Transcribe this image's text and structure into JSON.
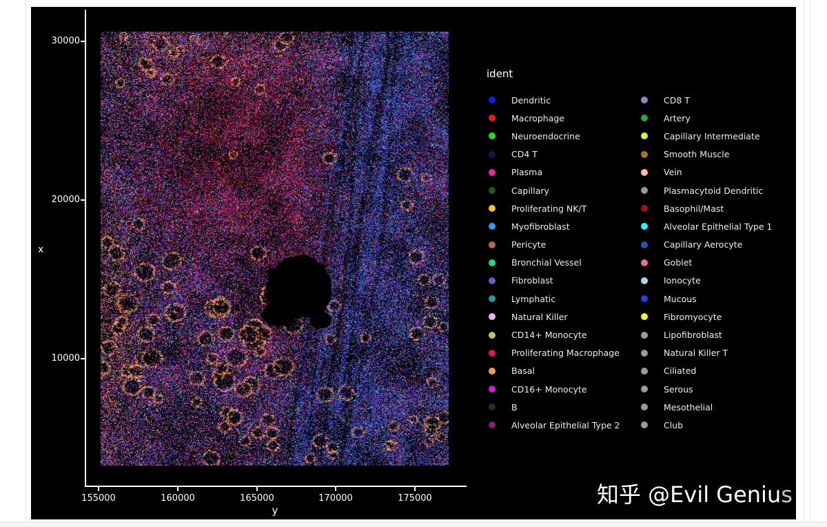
{
  "page": {
    "background": "#ffffff",
    "panel_bg": "#000000",
    "watermark": {
      "text": "知乎 @Evil Genius",
      "main": "知乎 @Evil Geniu",
      "tail": "s"
    }
  },
  "chart_data": {
    "type": "scatter",
    "title": "",
    "legend_title": "ident",
    "xlabel": "y",
    "ylabel": "x",
    "x_ticks": [
      "155000",
      "160000",
      "165000",
      "170000",
      "175000"
    ],
    "y_ticks": [
      "30000",
      "20000",
      "10000"
    ],
    "x_range": [
      154200,
      178200
    ],
    "y_range": [
      2000,
      32000
    ],
    "grid": false,
    "background": "#000000",
    "axis_color": "#ffffff",
    "legend_position": "right",
    "series": [
      {
        "name": "Dendritic",
        "color": "#1b1bf0"
      },
      {
        "name": "Macrophage",
        "color": "#ee1616"
      },
      {
        "name": "Neuroendocrine",
        "color": "#1edc1e"
      },
      {
        "name": "CD4 T",
        "color": "#12124e"
      },
      {
        "name": "Plasma",
        "color": "#ee22aa"
      },
      {
        "name": "Capillary",
        "color": "#1d5c1d"
      },
      {
        "name": "Proliferating NK/T",
        "color": "#f2c423"
      },
      {
        "name": "Myofibroblast",
        "color": "#309ce8"
      },
      {
        "name": "Pericyte",
        "color": "#b26a5c"
      },
      {
        "name": "Bronchial Vessel",
        "color": "#10dc8c"
      },
      {
        "name": "Fibroblast",
        "color": "#7a4fc4"
      },
      {
        "name": "Lymphatic",
        "color": "#2f9595"
      },
      {
        "name": "Natural Killer",
        "color": "#f2aaf2"
      },
      {
        "name": "CD14+ Monocyte",
        "color": "#bdc06e"
      },
      {
        "name": "Proliferating Macrophage",
        "color": "#e2174c"
      },
      {
        "name": "Basal",
        "color": "#f39a54"
      },
      {
        "name": "CD16+ Monocyte",
        "color": "#d818d8"
      },
      {
        "name": "B",
        "color": "#2e2a18"
      },
      {
        "name": "Alveolar Epithelial Type 2",
        "color": "#8e1a7a"
      },
      {
        "name": "CD8 T",
        "color": "#8e86b8"
      },
      {
        "name": "Artery",
        "color": "#27a836"
      },
      {
        "name": "Capillary Intermediate",
        "color": "#dff040"
      },
      {
        "name": "Smooth Muscle",
        "color": "#a37a1a"
      },
      {
        "name": "Vein",
        "color": "#f8b9a9"
      },
      {
        "name": "Plasmacytoid Dendritic",
        "color": "#9a9a85"
      },
      {
        "name": "Basophil/Mast",
        "color": "#a31212"
      },
      {
        "name": "Alveolar Epithelial Type 1",
        "color": "#26f0f0"
      },
      {
        "name": "Capillary Aerocyte",
        "color": "#1a58ba"
      },
      {
        "name": "Goblet",
        "color": "#e87098"
      },
      {
        "name": "Ionocyte",
        "color": "#abd5f5"
      },
      {
        "name": "Mucous",
        "color": "#1846e0"
      },
      {
        "name": "Fibromyocyte",
        "color": "#f5f520"
      },
      {
        "name": "Lipofibroblast",
        "color": "#9b9b9b"
      },
      {
        "name": "Natural Killer T",
        "color": "#9b9b9b"
      },
      {
        "name": "Ciliated",
        "color": "#9b9b9b"
      },
      {
        "name": "Serous",
        "color": "#9b9b9b"
      },
      {
        "name": "Mesothelial",
        "color": "#9b9b9b"
      },
      {
        "name": "Club",
        "color": "#9b9b9b"
      }
    ]
  }
}
